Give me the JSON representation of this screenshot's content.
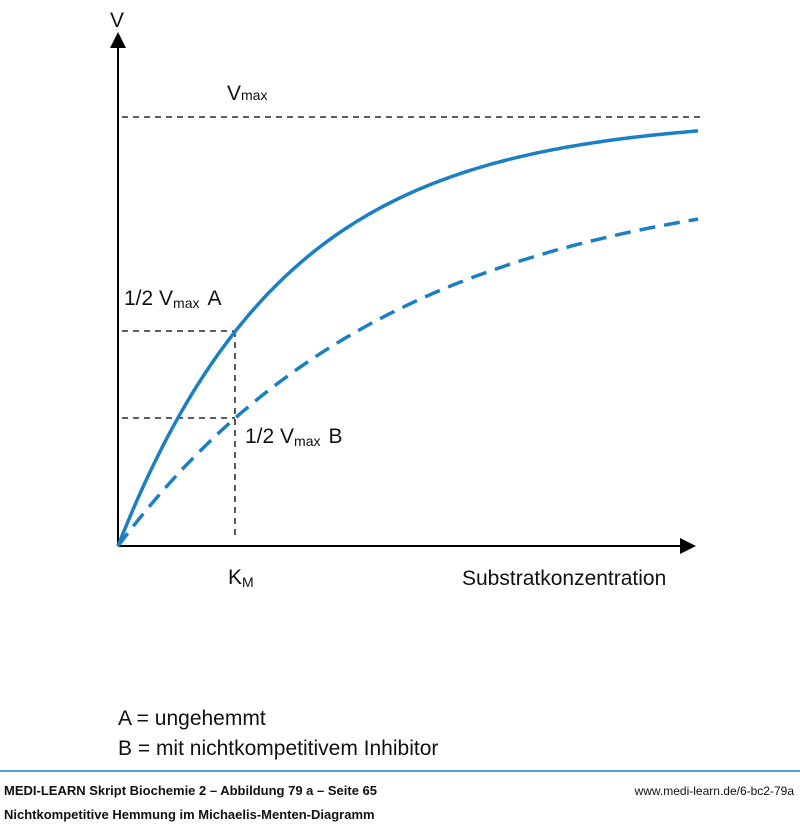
{
  "diagram": {
    "y_axis_label": "V",
    "x_axis_label": "Substratkonzentration",
    "vmax_label": {
      "main": "V",
      "sub": "max"
    },
    "half_a_label": {
      "before": "1/2 V",
      "sub": "max",
      "after": "A"
    },
    "half_b_label": {
      "before": "1/2 V",
      "sub": "max",
      "after": "B"
    },
    "km_label": {
      "main": "K",
      "sub": "M"
    }
  },
  "legend": [
    "A = ungehemmt",
    "B = mit nichtkompetitivem Inhibitor"
  ],
  "footer": {
    "source": "MEDI-LEARN Skript Biochemie 2 – Abbildung 79 a – Seite 65",
    "url": "www.medi-learn.de/6-bc2-79a",
    "caption": "Nichtkompetitive Hemmung im Michaelis-Menten-Diagramm"
  }
}
